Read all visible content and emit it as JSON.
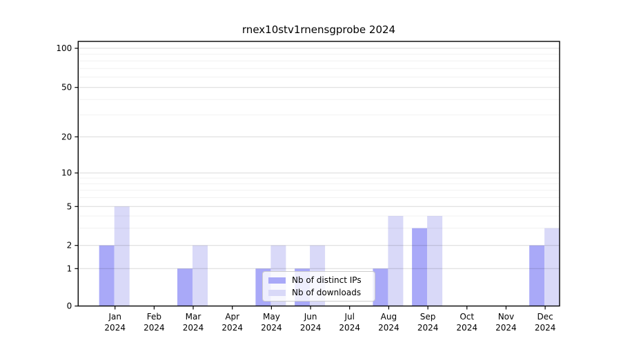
{
  "title": "rnex10stv1rnensgprobe 2024",
  "legend": {
    "items": [
      {
        "label": "Nb of distinct IPs",
        "color": "#a9a9f8"
      },
      {
        "label": "Nb of downloads",
        "color": "#d9d9f8"
      }
    ]
  },
  "chart_data": {
    "type": "bar",
    "title": "rnex10stv1rnensgprobe 2024",
    "categories": [
      "Jan 2024",
      "Feb 2024",
      "Mar 2024",
      "Apr 2024",
      "May 2024",
      "Jun 2024",
      "Jul 2024",
      "Aug 2024",
      "Sep 2024",
      "Oct 2024",
      "Nov 2024",
      "Dec 2024"
    ],
    "series": [
      {
        "name": "Nb of distinct IPs",
        "color": "#a9a9f8",
        "values": [
          2,
          0,
          1,
          0,
          1,
          1,
          0,
          1,
          3,
          0,
          0,
          2
        ]
      },
      {
        "name": "Nb of downloads",
        "color": "#d9d9f8",
        "values": [
          5,
          0,
          2,
          0,
          2,
          2,
          0,
          4,
          4,
          0,
          0,
          3
        ]
      }
    ],
    "xlabel": "",
    "ylabel": "",
    "yscale": "log-above-1 with 0 baseline (symlog-like)",
    "y_major_ticks": [
      100,
      50,
      20,
      10,
      5,
      2,
      1,
      0
    ],
    "y_minor_ticks": [
      3,
      4,
      6,
      7,
      8,
      9,
      30,
      40,
      60,
      70,
      80,
      90
    ],
    "ylim": [
      0,
      100
    ],
    "grid": true,
    "legend_position": "lower center",
    "background": "#ffffff",
    "frame_color": "#000000"
  }
}
